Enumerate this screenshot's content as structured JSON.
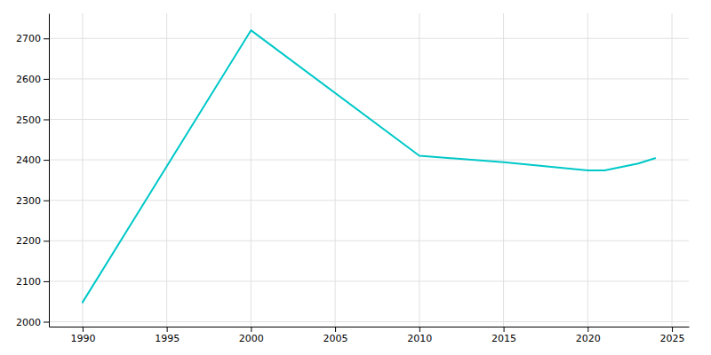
{
  "chart_data": {
    "type": "line",
    "x": [
      1990,
      2000,
      2010,
      2015,
      2020,
      2021,
      2023,
      2024
    ],
    "values": [
      2048,
      2720,
      2410,
      2394,
      2374,
      2374,
      2391,
      2404
    ],
    "color": "#00C8C8",
    "xlim": [
      1988,
      2026
    ],
    "ylim": [
      1988,
      2762
    ],
    "xticks": [
      1990,
      1995,
      2000,
      2005,
      2010,
      2015,
      2020,
      2025
    ],
    "yticks": [
      2000,
      2100,
      2200,
      2300,
      2400,
      2500,
      2600,
      2700
    ],
    "grid": true
  }
}
